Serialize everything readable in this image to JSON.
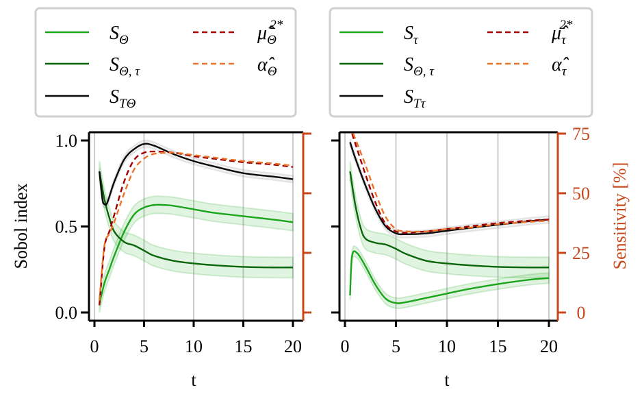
{
  "colors": {
    "s_main": "#1aa51a",
    "s_interaction": "#0a640a",
    "s_total": "#0a0a0a",
    "mu": "#a00000",
    "alpha": "#e8732a",
    "sensitivity_axis": "#c8471a",
    "band_green": "#1aa51a",
    "band_gray": "#888888",
    "grid": "#cccccc"
  },
  "chart_data": [
    {
      "type": "line",
      "panel": "left",
      "xlabel": "t",
      "ylabel": "Sobol index",
      "xlim": [
        0,
        20
      ],
      "ylim": [
        0,
        1
      ],
      "y2lim": [
        0,
        75
      ],
      "xticks": [
        "0",
        "5",
        "10",
        "15",
        "20"
      ],
      "yticks": [
        "1.0",
        "0.5",
        "0.0"
      ],
      "y2ticks": [],
      "grid": "vertical",
      "legend": {
        "placement": "above",
        "entries": [
          {
            "base": "S",
            "sub": "Θ",
            "sup": ""
          },
          {
            "base": "S",
            "sub": "Θ, τ",
            "sup": ""
          },
          {
            "base": "S",
            "sub": "TΘ",
            "sup": ""
          },
          {
            "base": "μ̂",
            "sub": "Θ",
            "sup": "2*"
          },
          {
            "base": "α̂",
            "sub": "Θ",
            "sup": ""
          }
        ]
      },
      "series": [
        {
          "name": "S_Θ",
          "axis": "left",
          "color_key": "s_main",
          "dash": false,
          "band": 0.05,
          "band_color_key": "band_green",
          "x": [
            0.5,
            1,
            1.5,
            2,
            3,
            4,
            5,
            6,
            7,
            8,
            10,
            12,
            15,
            18,
            20
          ],
          "y": [
            0.05,
            0.17,
            0.25,
            0.33,
            0.47,
            0.57,
            0.61,
            0.625,
            0.625,
            0.62,
            0.6,
            0.58,
            0.56,
            0.54,
            0.525
          ]
        },
        {
          "name": "S_Θ,τ",
          "axis": "left",
          "color_key": "s_interaction",
          "dash": false,
          "band": 0.06,
          "band_color_key": "band_green",
          "x": [
            0.5,
            1,
            1.5,
            2,
            3,
            4,
            5,
            6,
            8,
            10,
            12,
            15,
            18,
            20
          ],
          "y": [
            0.82,
            0.66,
            0.55,
            0.47,
            0.41,
            0.39,
            0.36,
            0.33,
            0.3,
            0.285,
            0.275,
            0.265,
            0.262,
            0.262
          ]
        },
        {
          "name": "S_TΘ",
          "axis": "left",
          "color_key": "s_total",
          "dash": false,
          "band": 0.02,
          "band_color_key": "band_gray",
          "x": [
            0.5,
            0.8,
            1,
            1.3,
            2,
            3,
            4,
            5,
            6,
            8,
            10,
            12,
            15,
            18,
            20
          ],
          "y": [
            0.82,
            0.66,
            0.63,
            0.64,
            0.76,
            0.89,
            0.95,
            0.98,
            0.97,
            0.92,
            0.88,
            0.85,
            0.81,
            0.79,
            0.775
          ]
        },
        {
          "name": "μ̂_Θ^2*",
          "axis": "right",
          "color_key": "mu",
          "dash": true,
          "x": [
            0.5,
            1,
            1.5,
            2,
            3,
            4,
            5,
            6,
            8,
            10,
            12,
            15,
            18,
            20
          ],
          "y": [
            3,
            27,
            34,
            41,
            55,
            64,
            67,
            67.5,
            67,
            65.5,
            64.5,
            63,
            62,
            61
          ]
        },
        {
          "name": "α̂_Θ",
          "axis": "right",
          "color_key": "alpha",
          "dash": true,
          "x": [
            0.5,
            1,
            1.5,
            2,
            3,
            4,
            5,
            6,
            8,
            10,
            12,
            15,
            18,
            20
          ],
          "y": [
            5,
            28,
            33,
            38,
            50,
            60,
            64.5,
            66.5,
            67,
            66,
            65,
            63.5,
            62.5,
            61.5
          ]
        }
      ]
    },
    {
      "type": "line",
      "panel": "right",
      "xlabel": "t",
      "y2label": "Sensitivity [%]",
      "xlim": [
        0,
        20
      ],
      "ylim": [
        0,
        1
      ],
      "y2lim": [
        0,
        75
      ],
      "xticks": [
        "0",
        "5",
        "10",
        "15",
        "20"
      ],
      "yticks": [],
      "y2ticks": [
        "75",
        "50",
        "25",
        "0"
      ],
      "grid": "vertical",
      "legend": {
        "placement": "above",
        "entries": [
          {
            "base": "S",
            "sub": "τ",
            "sup": ""
          },
          {
            "base": "S",
            "sub": "Θ, τ",
            "sup": ""
          },
          {
            "base": "S",
            "sub": "Tτ",
            "sup": ""
          },
          {
            "base": "μ̂",
            "sub": "τ",
            "sup": "2*"
          },
          {
            "base": "α̂",
            "sub": "τ",
            "sup": ""
          }
        ]
      },
      "series": [
        {
          "name": "S_τ",
          "axis": "left",
          "color_key": "s_main",
          "dash": false,
          "band": 0.03,
          "band_color_key": "band_green",
          "x": [
            0.5,
            0.7,
            1.2,
            2,
            3,
            4,
            5,
            6,
            8,
            10,
            12,
            15,
            18,
            20
          ],
          "y": [
            0.1,
            0.33,
            0.345,
            0.27,
            0.16,
            0.08,
            0.055,
            0.06,
            0.085,
            0.11,
            0.135,
            0.165,
            0.19,
            0.2
          ]
        },
        {
          "name": "S_Θ,τ",
          "axis": "left",
          "color_key": "s_interaction",
          "dash": false,
          "band": 0.06,
          "band_color_key": "band_green",
          "x": [
            0.5,
            1,
            1.5,
            2,
            3,
            4,
            5,
            6,
            8,
            10,
            12,
            15,
            18,
            20
          ],
          "y": [
            0.82,
            0.63,
            0.5,
            0.43,
            0.405,
            0.395,
            0.37,
            0.34,
            0.3,
            0.285,
            0.275,
            0.265,
            0.262,
            0.262
          ]
        },
        {
          "name": "S_Tτ",
          "axis": "left",
          "color_key": "s_total",
          "dash": false,
          "band": 0.02,
          "band_color_key": "band_gray",
          "x": [
            0.5,
            1,
            2,
            3,
            4,
            5,
            6,
            8,
            10,
            12,
            15,
            18,
            20
          ],
          "y": [
            0.99,
            0.9,
            0.74,
            0.6,
            0.5,
            0.46,
            0.455,
            0.46,
            0.475,
            0.49,
            0.51,
            0.53,
            0.54
          ]
        },
        {
          "name": "μ̂_τ^2*",
          "axis": "right",
          "color_key": "mu",
          "dash": true,
          "x": [
            0.7,
            1,
            2,
            3,
            4,
            5,
            6,
            8,
            10,
            12,
            15,
            18,
            20
          ],
          "y": [
            75,
            71,
            58,
            46,
            37,
            34,
            33.5,
            34,
            35,
            36,
            37.5,
            38.5,
            39
          ]
        },
        {
          "name": "α̂_τ",
          "axis": "right",
          "color_key": "alpha",
          "dash": true,
          "x": [
            0.8,
            1,
            2,
            3,
            4,
            5,
            6,
            8,
            10,
            12,
            15,
            18,
            20
          ],
          "y": [
            75,
            73,
            62,
            50,
            40,
            35,
            34,
            34,
            35,
            35.5,
            37,
            38,
            38.5
          ]
        }
      ]
    }
  ]
}
